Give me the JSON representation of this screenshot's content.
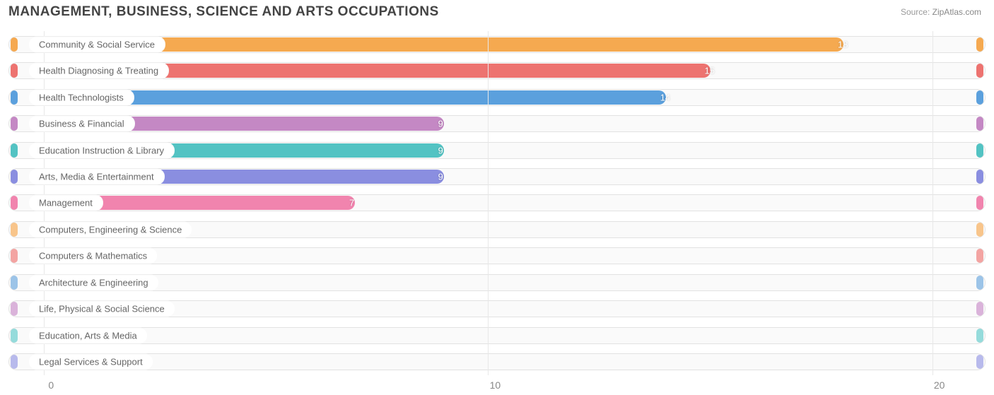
{
  "title": "MANAGEMENT, BUSINESS, SCIENCE AND ARTS OCCUPATIONS",
  "source_label": "Source:",
  "source_value": "ZipAtlas.com",
  "chart": {
    "type": "bar-horizontal",
    "background_color": "#ffffff",
    "track_border": "#e2e2e2",
    "track_fill": "#fafafa",
    "grid_color": "#e8e8e8",
    "xaxis": {
      "min": -0.8,
      "max": 21.2,
      "ticks": [
        0,
        10,
        20
      ],
      "tick_labels": [
        "0",
        "10",
        "20"
      ],
      "label_color": "#888888",
      "label_fontsize": 14
    },
    "category_label_style": {
      "fontsize": 13,
      "color": "#666666",
      "bg": "#ffffff"
    },
    "value_label_style": {
      "fontsize": 13,
      "inside_color": "#ffffff",
      "outside_color": "#888888",
      "outside_threshold": 1
    },
    "bar_radius": 12,
    "rows": [
      {
        "label": "Community & Social Service",
        "value": 18,
        "color": "#f5a950"
      },
      {
        "label": "Health Diagnosing & Treating",
        "value": 15,
        "color": "#ed7370"
      },
      {
        "label": "Health Technologists",
        "value": 14,
        "color": "#5ba0dd"
      },
      {
        "label": "Business & Financial",
        "value": 9,
        "color": "#c488c4"
      },
      {
        "label": "Education Instruction & Library",
        "value": 9,
        "color": "#53c3c3"
      },
      {
        "label": "Arts, Media & Entertainment",
        "value": 9,
        "color": "#8a8ee0"
      },
      {
        "label": "Management",
        "value": 7,
        "color": "#f184ae"
      },
      {
        "label": "Computers, Engineering & Science",
        "value": 0,
        "color": "#f8c58b"
      },
      {
        "label": "Computers & Mathematics",
        "value": 0,
        "color": "#f3a4a2"
      },
      {
        "label": "Architecture & Engineering",
        "value": 0,
        "color": "#9cc4e8"
      },
      {
        "label": "Life, Physical & Social Science",
        "value": 0,
        "color": "#dab3da"
      },
      {
        "label": "Education, Arts & Media",
        "value": 0,
        "color": "#95dbdb"
      },
      {
        "label": "Legal Services & Support",
        "value": 0,
        "color": "#b8baec"
      }
    ]
  }
}
